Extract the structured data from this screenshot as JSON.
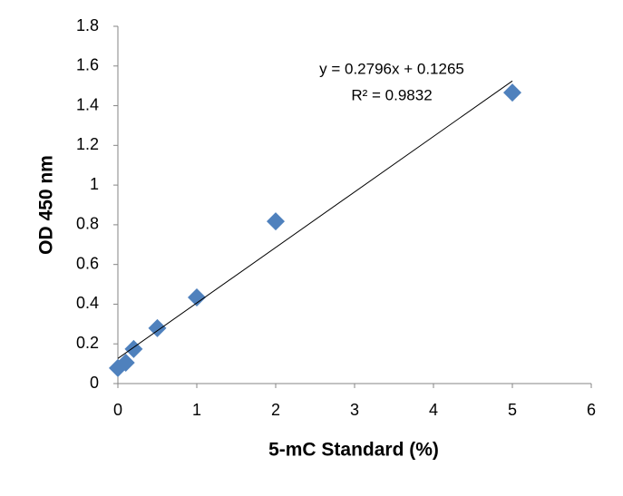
{
  "chart_data": {
    "type": "scatter",
    "x_label": "5-mC Standard  (%)",
    "y_label": "OD 450 nm",
    "series": [
      {
        "color": "#4f81bd",
        "x": [
          0,
          0.1,
          0.2,
          0.5,
          1,
          2,
          5
        ],
        "values": [
          0.078,
          0.105,
          0.174,
          0.279,
          0.434,
          0.817,
          1.466
        ]
      }
    ],
    "xlim": [
      0,
      6
    ],
    "xticks": [
      0,
      1,
      2,
      3,
      4,
      5,
      6
    ],
    "ylim": [
      0,
      1.8
    ],
    "yticks": [
      0,
      0.2,
      0.4,
      0.6,
      0.8,
      1,
      1.2,
      1.4,
      1.6,
      1.8
    ],
    "grid": false,
    "trendline": {
      "equation": "y = 0.2796x + 0.1265",
      "r_squared": "R² = 0.9832",
      "slope": 0.2796,
      "intercept": 0.1265
    }
  }
}
